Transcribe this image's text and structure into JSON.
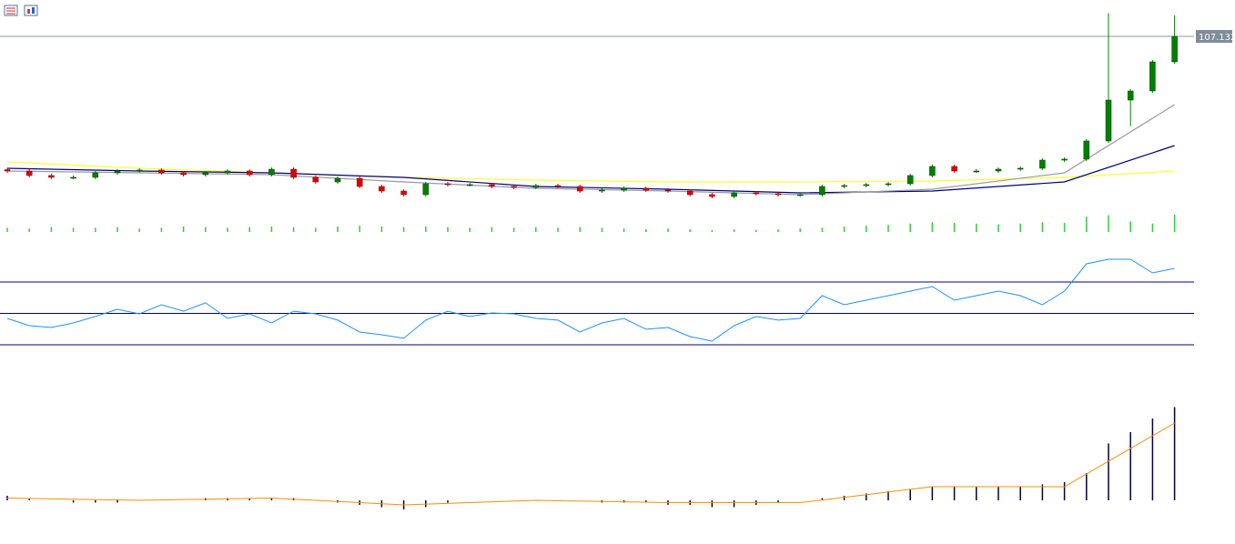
{
  "chart_data": {
    "type": "candlestick",
    "ylim": [
      104.757,
      107.632
    ],
    "price_line": 107.132,
    "up_color": "#008000",
    "down_color": "#e00000",
    "open": [
      105.3,
      105.282,
      105.22,
      105.195,
      105.195,
      105.257,
      105.282,
      105.295,
      105.257,
      105.232,
      105.257,
      105.282,
      105.232,
      105.307,
      105.195,
      105.132,
      105.182,
      105.07,
      105.007,
      104.957,
      105.107,
      105.095,
      105.095,
      105.07,
      105.057,
      105.082,
      105.07,
      105.007,
      105.02,
      105.045,
      105.02,
      105.007,
      104.957,
      104.932,
      104.982,
      104.97,
      104.957,
      104.957,
      105.07,
      105.082,
      105.095,
      105.107,
      105.22,
      105.345,
      105.282,
      105.282,
      105.307,
      105.32,
      105.432,
      105.445,
      105.695,
      106.257,
      106.382,
      106.782
    ],
    "close": [
      105.282,
      105.22,
      105.195,
      105.195,
      105.257,
      105.282,
      105.295,
      105.257,
      105.232,
      105.257,
      105.282,
      105.232,
      105.307,
      105.195,
      105.132,
      105.182,
      105.07,
      105.007,
      104.957,
      105.107,
      105.095,
      105.095,
      105.07,
      105.057,
      105.082,
      105.07,
      105.007,
      105.02,
      105.045,
      105.02,
      105.007,
      104.957,
      104.932,
      104.982,
      104.97,
      104.957,
      104.957,
      105.07,
      105.082,
      105.095,
      105.107,
      105.22,
      105.345,
      105.282,
      105.282,
      105.307,
      105.32,
      105.432,
      105.445,
      105.695,
      106.257,
      106.382,
      106.782,
      107.132
    ],
    "high": [
      105.325,
      105.307,
      105.245,
      105.22,
      105.282,
      105.307,
      105.32,
      105.32,
      105.282,
      105.282,
      105.307,
      105.307,
      105.332,
      105.332,
      105.22,
      105.207,
      105.207,
      105.095,
      105.032,
      105.132,
      105.132,
      105.12,
      105.12,
      105.095,
      105.107,
      105.107,
      105.095,
      105.045,
      105.07,
      105.07,
      105.045,
      105.032,
      104.982,
      105.007,
      105.007,
      104.995,
      104.982,
      105.095,
      105.107,
      105.12,
      105.132,
      105.245,
      105.37,
      105.37,
      105.307,
      105.332,
      105.345,
      105.457,
      105.47,
      105.72,
      107.45,
      106.407,
      106.807,
      107.42
    ],
    "low": [
      105.257,
      105.195,
      105.17,
      105.17,
      105.17,
      105.232,
      105.257,
      105.232,
      105.207,
      105.207,
      105.232,
      105.207,
      105.207,
      105.17,
      105.107,
      105.107,
      105.045,
      104.982,
      104.932,
      104.932,
      105.07,
      105.07,
      105.045,
      105.032,
      105.032,
      105.045,
      104.982,
      104.982,
      104.995,
      104.995,
      104.982,
      104.932,
      104.907,
      104.907,
      104.945,
      104.932,
      104.932,
      104.932,
      105.045,
      105.057,
      105.07,
      105.082,
      105.195,
      105.257,
      105.257,
      105.257,
      105.282,
      105.295,
      105.407,
      105.42,
      105.67,
      105.9,
      106.357,
      106.757
    ],
    "ma_index": [
      0,
      6,
      12,
      18,
      24,
      30,
      36,
      42,
      48,
      53
    ],
    "moving_averages": [
      {
        "color": "#ffff33",
        "values": [
          105.407,
          105.32,
          105.257,
          105.195,
          105.157,
          105.132,
          105.132,
          105.145,
          105.195,
          105.282
        ]
      },
      {
        "color": "#000080",
        "values": [
          105.32,
          105.282,
          105.257,
          105.195,
          105.07,
          105.032,
          104.982,
          105.007,
          105.132,
          105.632
        ]
      },
      {
        "color": "#9a9a9a",
        "values": [
          105.282,
          105.257,
          105.232,
          105.132,
          105.045,
          105.007,
          104.957,
          105.032,
          105.257,
          106.195
        ]
      }
    ],
    "volume": {
      "color": "#32cd32",
      "ylim": [
        0,
        30
      ],
      "values": [
        6,
        5,
        7,
        6,
        6,
        7,
        5,
        6,
        8,
        7,
        6,
        7,
        8,
        7,
        6,
        8,
        9,
        8,
        7,
        8,
        7,
        6,
        7,
        6,
        7,
        6,
        7,
        6,
        5,
        4,
        5,
        4,
        3,
        4,
        3,
        4,
        5,
        6,
        8,
        9,
        10,
        12,
        14,
        13,
        12,
        11,
        12,
        14,
        13,
        22,
        24,
        15,
        12,
        25
      ]
    },
    "rsi": {
      "color": "#1e90ff",
      "level_color": "#000080",
      "ylim": [
        0,
        100
      ],
      "levels": [
        30,
        50,
        70
      ],
      "values": [
        46.8,
        42.2,
        41,
        43.9,
        48,
        52.6,
        49.7,
        55.5,
        51.4,
        56.7,
        46.8,
        49.7,
        43.9,
        51.4,
        49.7,
        45.7,
        38.1,
        36.4,
        34.1,
        45.7,
        51.4,
        48,
        50.3,
        49.7,
        46.8,
        45.7,
        38.1,
        43.9,
        46.8,
        39.9,
        41,
        35.2,
        32.3,
        42.2,
        48,
        45.7,
        46.8,
        61.3,
        55.5,
        58.4,
        61.3,
        64.2,
        67.1,
        58.4,
        61.3,
        64.2,
        61.3,
        55.5,
        64.2,
        81.6,
        84.5,
        84.5,
        75.8,
        78.7
      ]
    },
    "macd": {
      "color": "#000040",
      "signal_color": "#ff8c00",
      "ylim": [
        -0.16,
        0.44
      ],
      "values": [
        0.02,
        0.01,
        0,
        -0.01,
        -0.01,
        -0.01,
        0,
        0,
        0,
        0.01,
        0.01,
        0.01,
        0.01,
        0.01,
        0,
        -0.01,
        -0.02,
        -0.03,
        -0.04,
        -0.03,
        -0.01,
        0,
        0,
        0,
        0,
        0,
        0,
        -0.01,
        -0.01,
        -0.01,
        -0.02,
        -0.02,
        -0.03,
        -0.03,
        -0.02,
        -0.01,
        0,
        0.01,
        0.02,
        0.03,
        0.04,
        0.05,
        0.06,
        0.06,
        0.06,
        0.06,
        0.06,
        0.07,
        0.08,
        0.12,
        0.25,
        0.3,
        0.36,
        0.41
      ],
      "signal": [
        0.01,
        0,
        0.01,
        -0.02,
        0,
        -0.01,
        -0.01,
        0.06,
        0.06,
        0.34
      ]
    }
  }
}
